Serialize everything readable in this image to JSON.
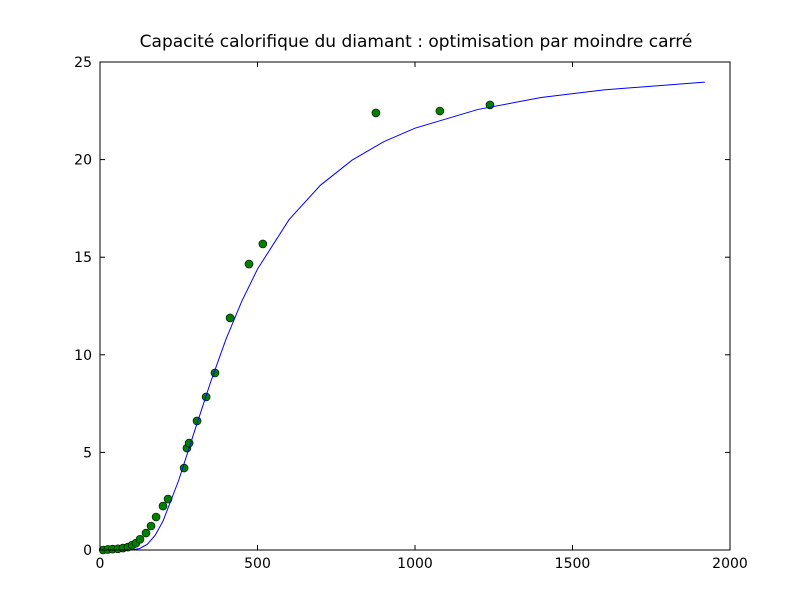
{
  "chart_data": {
    "type": "scatter",
    "title": "Capacité calorifique du diamant : optimisation par moindre carré",
    "xlim": [
      0,
      2000
    ],
    "xticks": [
      0,
      500,
      1000,
      1500,
      2000
    ],
    "ylim": [
      0,
      25
    ],
    "yticks": [
      0,
      5,
      10,
      15,
      20,
      25
    ],
    "series": [
      {
        "style": "markers",
        "color": "#008000",
        "x": [
          10,
          25,
          40,
          57,
          73,
          89,
          102,
          114,
          127,
          146,
          162,
          178,
          200,
          216,
          267,
          276,
          283,
          308,
          337,
          365,
          413,
          473,
          517,
          876,
          1079,
          1238
        ],
        "values": [
          0.0,
          0.03,
          0.05,
          0.06,
          0.1,
          0.15,
          0.25,
          0.35,
          0.55,
          0.87,
          1.23,
          1.69,
          2.25,
          2.61,
          4.2,
          5.22,
          5.48,
          6.61,
          7.84,
          9.07,
          11.89,
          14.65,
          15.68,
          22.39,
          22.49,
          22.8
        ]
      },
      {
        "style": "line",
        "color": "#0000ff",
        "x": [
          0,
          50,
          100,
          125,
          150,
          175,
          200,
          250,
          300,
          350,
          400,
          450,
          500,
          600,
          700,
          800,
          900,
          1000,
          1200,
          1400,
          1600,
          1920
        ],
        "values": [
          0,
          0,
          0.008,
          0.072,
          0.29,
          0.75,
          1.48,
          3.58,
          6.08,
          8.55,
          10.8,
          12.74,
          14.39,
          16.92,
          18.69,
          19.97,
          20.91,
          21.61,
          22.57,
          23.18,
          23.57,
          23.97
        ]
      }
    ]
  }
}
